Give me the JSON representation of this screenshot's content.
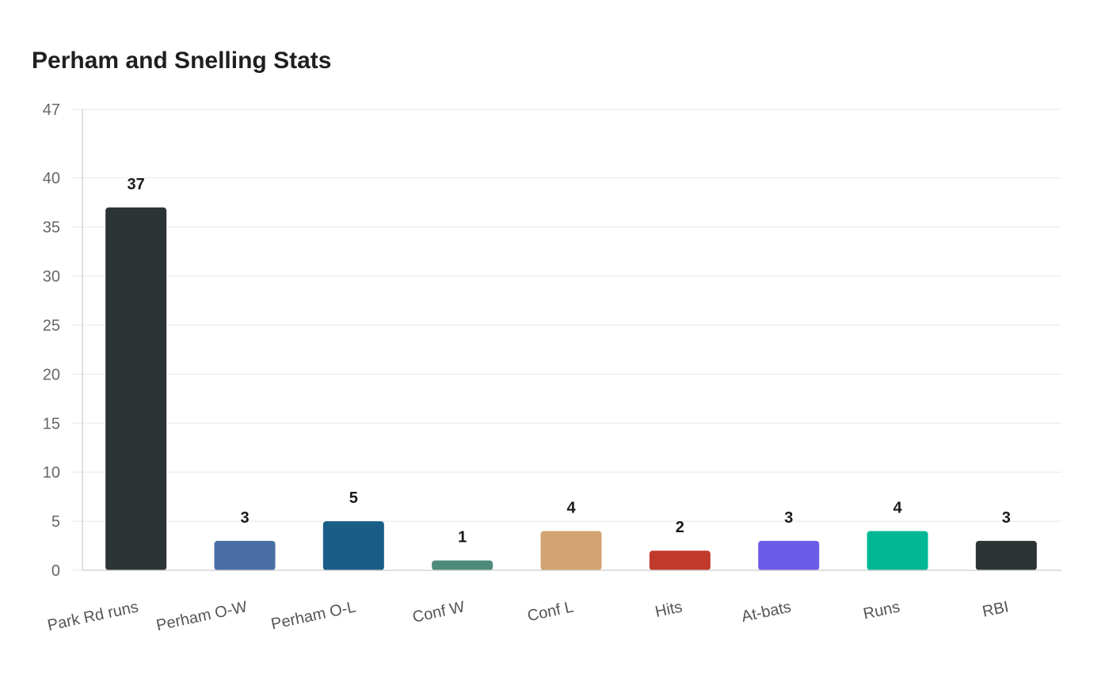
{
  "chart_data": {
    "type": "bar",
    "title": "Perham and Snelling Stats",
    "xlabel": "",
    "ylabel": "",
    "categories": [
      "Park Rd runs",
      "Perham O-W",
      "Perham O-L",
      "Conf W",
      "Conf L",
      "Hits",
      "At-bats",
      "Runs",
      "RBI"
    ],
    "values": [
      37,
      3,
      5,
      1,
      4,
      2,
      3,
      4,
      3
    ],
    "colors": [
      "#2d3436",
      "#4a6fa5",
      "#1a5e87",
      "#4e8b7a",
      "#d4a373",
      "#c0392b",
      "#6c5ce7",
      "#00b894",
      "#2d3436"
    ],
    "ylim": [
      0,
      47
    ],
    "yticks": [
      0,
      5,
      10,
      15,
      20,
      25,
      30,
      35,
      40,
      47
    ],
    "grid": true,
    "legend": "none",
    "data_labels": true
  }
}
